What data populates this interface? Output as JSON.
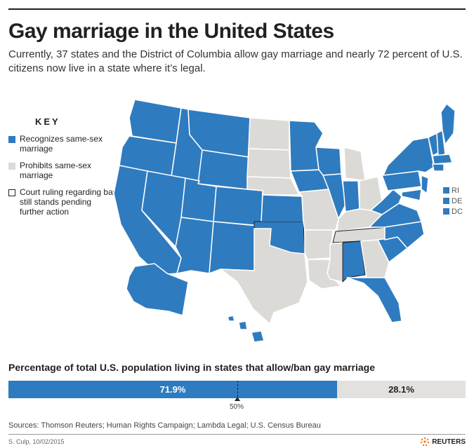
{
  "header": {
    "title": "Gay marriage in the United States",
    "subtitle": "Currently, 37 states and the District of Columbia allow gay marriage and nearly 72 percent of U.S. citizens now live in a state where it’s legal."
  },
  "key": {
    "title": "KEY",
    "items": [
      {
        "label": "Recognizes same-sex marriage",
        "color": "#2f7bbf"
      },
      {
        "label": "Prohibits same-sex marriage",
        "color": "#dcdad6"
      },
      {
        "label": "Court ruling regarding ban still stands pending further action",
        "color": "#ffffff"
      }
    ]
  },
  "small_states": [
    "RI",
    "DE",
    "DC"
  ],
  "population_bar": {
    "title": "Percentage of total U.S. population living in states that allow/ban gay marriage",
    "allow_pct": 71.9,
    "ban_pct": 28.1,
    "allow_label": "71.9%",
    "ban_label": "28.1%",
    "midpoint_label": "50%"
  },
  "footer": {
    "sources": "Sources: Thomson Reuters; Human Rights Campaign; Lambda Legal; U.S. Census Bureau",
    "credit": "S. Culp, 10/02/2015",
    "logo": "REUTERS"
  },
  "colors": {
    "allow": "#2f7bbf",
    "ban": "#dcdad6",
    "border": "#ffffff",
    "outline": "#231f20"
  }
}
